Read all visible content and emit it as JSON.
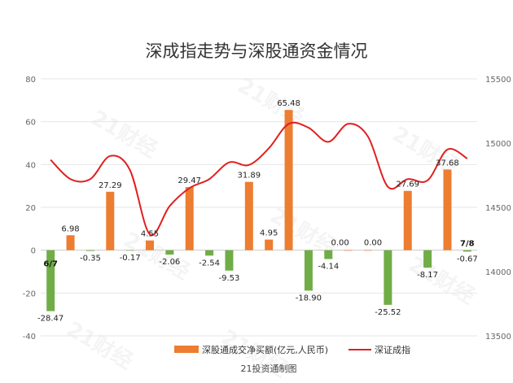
{
  "chart_data": {
    "type": "bar",
    "title": "深成指走势与深股通资金情况",
    "categories": [
      "6/7",
      "",
      "",
      "",
      "",
      "",
      "",
      "",
      "",
      "",
      "",
      "",
      "",
      "",
      "",
      "",
      "",
      "",
      "",
      "",
      "",
      "7/8"
    ],
    "series": [
      {
        "name": "深股通成交净买额(亿元,人民币)",
        "type": "bar",
        "axis": "left",
        "values": [
          -28.47,
          6.98,
          -0.35,
          27.29,
          -0.17,
          4.55,
          -2.06,
          29.47,
          -2.54,
          -9.53,
          31.89,
          4.95,
          65.48,
          -18.9,
          -4.14,
          0.0,
          0.0,
          -25.52,
          27.69,
          -8.17,
          37.68,
          -0.67
        ],
        "labels": [
          "-28.47",
          "6.98",
          "-0.35",
          "27.29",
          "-0.17",
          "4.55",
          "-2.06",
          "29.47",
          "-2.54",
          "-9.53",
          "31.89",
          "4.95",
          "65.48",
          "-18.90",
          "-4.14",
          "0.00",
          "0.00",
          "-25.52",
          "27.69",
          "-8.17",
          "37.68",
          "-0.67"
        ]
      },
      {
        "name": "深证成指",
        "type": "line",
        "axis": "right",
        "values": [
          14870,
          14720,
          14720,
          14900,
          14790,
          14290,
          14510,
          14650,
          14720,
          14850,
          14830,
          14960,
          15150,
          15120,
          15010,
          15150,
          15050,
          14660,
          14720,
          14710,
          14950,
          14880
        ]
      }
    ],
    "y_left": {
      "min": -40,
      "max": 80,
      "ticks": [
        "-40",
        "-20",
        "0",
        "20",
        "40",
        "60",
        "80"
      ]
    },
    "y_right": {
      "min": 13500,
      "max": 15500,
      "ticks": [
        "13500",
        "14000",
        "14500",
        "15000",
        "15500"
      ]
    },
    "colors": {
      "positive_bar": "#ED7D31",
      "negative_bar": "#70AD47",
      "line": "#E02020"
    },
    "grid": true,
    "legend_position": "bottom",
    "caption": "21投资通制图",
    "watermark": "21财经"
  }
}
